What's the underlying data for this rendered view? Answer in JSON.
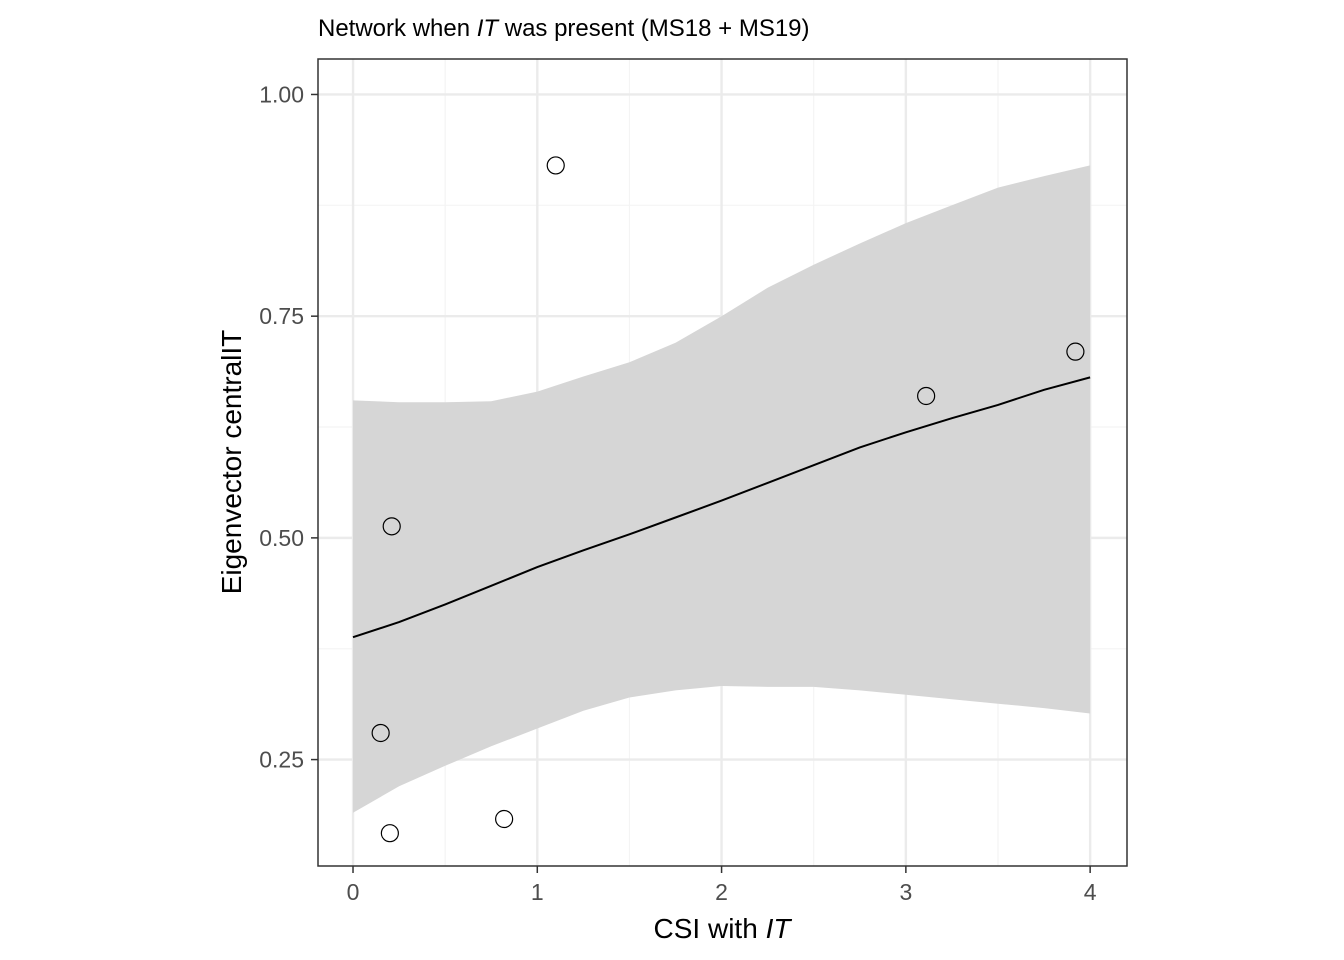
{
  "chart_data": {
    "type": "scatter",
    "title": {
      "part1": "Network when ",
      "italic": "IT",
      "part2": " was present (MS18 + MS19)"
    },
    "xlabel": {
      "part1": "CSI with ",
      "italic": "IT"
    },
    "ylabel": "Eigenvector centralIT",
    "xlim": [
      -0.19,
      4.2
    ],
    "ylim": [
      0.13,
      1.04
    ],
    "x_ticks": [
      0,
      1,
      2,
      3,
      4
    ],
    "x_tick_labels": [
      "0",
      "1",
      "2",
      "3",
      "4"
    ],
    "y_ticks": [
      0.25,
      0.5,
      0.75,
      1.0
    ],
    "y_tick_labels": [
      "0.25",
      "0.50",
      "0.75",
      "1.00"
    ],
    "grid": true,
    "points": [
      {
        "x": 1.1,
        "y": 0.92
      },
      {
        "x": 3.92,
        "y": 0.71
      },
      {
        "x": 3.11,
        "y": 0.66
      },
      {
        "x": 0.21,
        "y": 0.513
      },
      {
        "x": 0.15,
        "y": 0.28
      },
      {
        "x": 0.82,
        "y": 0.183
      },
      {
        "x": 0.2,
        "y": 0.167
      }
    ],
    "fit_line": {
      "x": [
        0,
        0.25,
        0.5,
        0.75,
        1.0,
        1.25,
        1.5,
        1.75,
        2.0,
        2.25,
        2.5,
        2.75,
        3.0,
        3.25,
        3.5,
        3.75,
        4.0
      ],
      "y": [
        0.388,
        0.405,
        0.425,
        0.446,
        0.467,
        0.486,
        0.504,
        0.523,
        0.542,
        0.562,
        0.582,
        0.602,
        0.619,
        0.635,
        0.65,
        0.667,
        0.681
      ]
    },
    "ci_band": {
      "x": [
        0,
        0.25,
        0.5,
        0.75,
        1.0,
        1.25,
        1.5,
        1.75,
        2.0,
        2.25,
        2.5,
        2.75,
        3.0,
        3.25,
        3.5,
        3.75,
        4.0
      ],
      "upper": [
        0.655,
        0.653,
        0.653,
        0.654,
        0.665,
        0.682,
        0.698,
        0.72,
        0.75,
        0.782,
        0.808,
        0.832,
        0.855,
        0.875,
        0.895,
        0.908,
        0.92
      ],
      "lower": [
        0.19,
        0.22,
        0.243,
        0.265,
        0.285,
        0.305,
        0.32,
        0.328,
        0.333,
        0.332,
        0.332,
        0.328,
        0.323,
        0.318,
        0.313,
        0.308,
        0.302
      ]
    },
    "colors": {
      "band": "#d6d6d6",
      "line": "#000000",
      "point_stroke": "#000000",
      "grid_major": "#ebebeb",
      "grid_minor": "#f4f4f4",
      "panel_border": "#333333"
    }
  }
}
